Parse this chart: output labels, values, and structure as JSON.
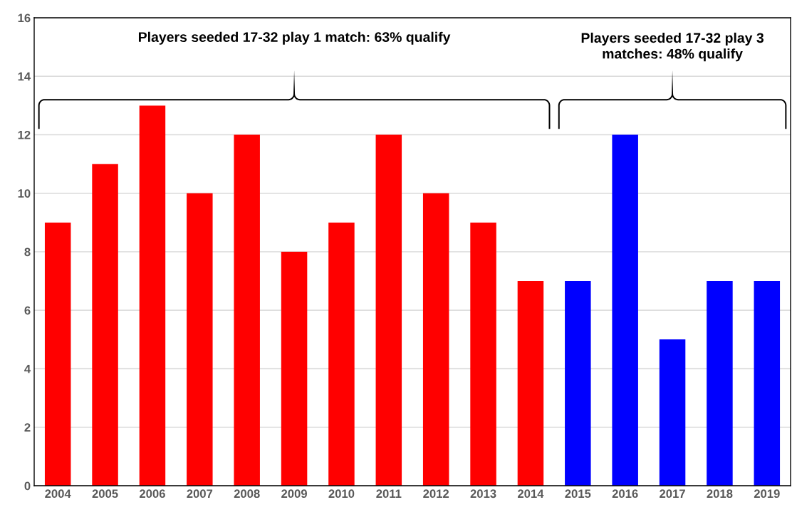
{
  "chart_data": {
    "type": "bar",
    "categories": [
      "2004",
      "2005",
      "2006",
      "2007",
      "2008",
      "2009",
      "2010",
      "2011",
      "2012",
      "2013",
      "2014",
      "2015",
      "2016",
      "2017",
      "2018",
      "2019"
    ],
    "values": [
      9,
      11,
      13,
      10,
      12,
      8,
      9,
      12,
      10,
      9,
      7,
      7,
      12,
      5,
      7,
      7
    ],
    "colors": [
      "#ff0000",
      "#ff0000",
      "#ff0000",
      "#ff0000",
      "#ff0000",
      "#ff0000",
      "#ff0000",
      "#ff0000",
      "#ff0000",
      "#ff0000",
      "#ff0000",
      "#0000ff",
      "#0000ff",
      "#0000ff",
      "#0000ff",
      "#0000ff"
    ],
    "ylim": [
      0,
      16
    ],
    "yticks": [
      0,
      2,
      4,
      6,
      8,
      10,
      12,
      14,
      16
    ],
    "grid": "y",
    "annotations": [
      "Players seeded 17-32 play 1 match: 63% qualify",
      "Players seeded 17-32 play 3\nmatches: 48% qualify"
    ]
  }
}
